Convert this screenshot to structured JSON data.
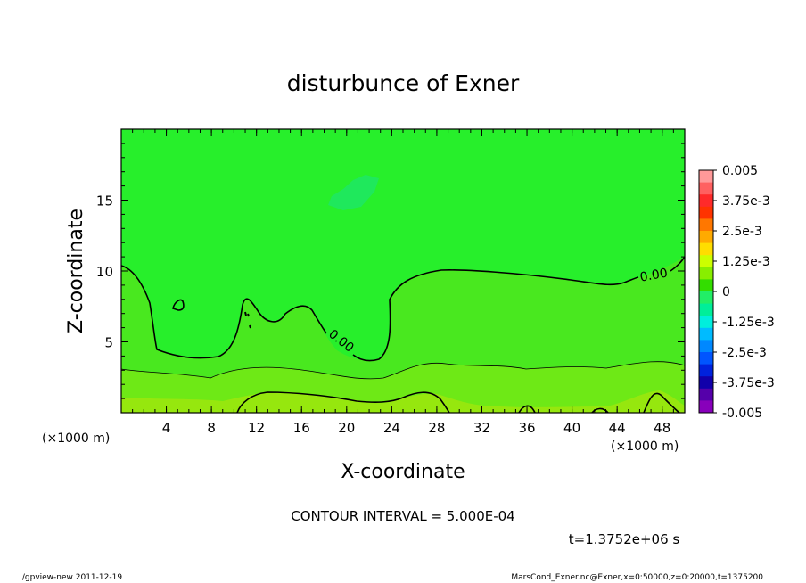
{
  "chart_data": {
    "type": "heatmap",
    "title": "disturbunce of Exner",
    "xlabel": "X-coordinate",
    "ylabel": "Z-coordinate",
    "x_unit_label": "(×1000 m)",
    "y_unit_label": "(×1000 m)",
    "xlim": [
      0,
      50
    ],
    "ylim": [
      0,
      20
    ],
    "x_ticks": [
      4,
      8,
      12,
      16,
      20,
      24,
      28,
      32,
      36,
      40,
      44,
      48
    ],
    "y_ticks": [
      5,
      10,
      15
    ],
    "contour_interval_text": "CONTOUR INTERVAL = 5.000E-04",
    "time_text": "t=1.3752e+06 s",
    "contour_labels": [
      "0.00",
      "0.00"
    ],
    "colorbar": {
      "range": [
        -0.005,
        0.005
      ],
      "tick_labels": [
        "0.005",
        "3.75e-3",
        "2.5e-3",
        "1.25e-3",
        "0",
        "-1.25e-3",
        "-2.5e-3",
        "-3.75e-3",
        "-0.005"
      ],
      "colors": [
        "#ff9999",
        "#ff6060",
        "#ff2a2a",
        "#ff3300",
        "#ff7700",
        "#ffaa00",
        "#ffdd00",
        "#ccff00",
        "#88ee00",
        "#33dd00",
        "#22ee66",
        "#00ee99",
        "#00eedd",
        "#00bbff",
        "#0088ff",
        "#0055ff",
        "#0022dd",
        "#1100aa",
        "#5500aa",
        "#8800bb"
      ]
    },
    "field_regions": [
      {
        "name": "upper",
        "approx_value": "-2.5e-4 to 0",
        "color": "#27ef2b"
      },
      {
        "name": "middle",
        "approx_value": "0 to 2.5e-4",
        "color": "#49e81f"
      },
      {
        "name": "lower",
        "approx_value": "5e-4 to 1e-3",
        "color": "#6ee916"
      },
      {
        "name": "bottom",
        "approx_value": "around 1e-3",
        "color": "#96e70e"
      },
      {
        "name": "upper-patch",
        "approx_value": "around -5e-4",
        "color": "#1fe85c"
      }
    ]
  },
  "footer": {
    "left": "./gpview-new   2011-12-19",
    "right": "MarsCond_Exner.nc@Exner,x=0:50000,z=0:20000,t=1375200"
  }
}
